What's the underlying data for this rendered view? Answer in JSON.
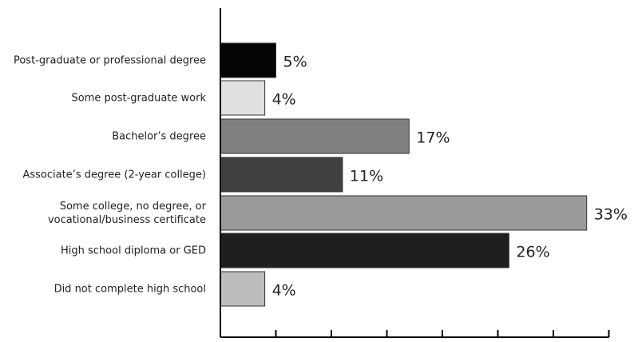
{
  "chart_data": {
    "type": "bar",
    "orientation": "horizontal",
    "title": "",
    "xlabel": "",
    "ylabel": "",
    "xlim": [
      0,
      36
    ],
    "grid": false,
    "categories": [
      [
        "Post-graduate or professional degree"
      ],
      [
        "Some post-graduate work"
      ],
      [
        "Bachelor’s degree"
      ],
      [
        "Associate’s degree (2-year college)"
      ],
      [
        "Some college, no degree, or",
        "vocational/business certificate"
      ],
      [
        "High school diploma or GED"
      ],
      [
        "Did not complete high school"
      ]
    ],
    "values": [
      5,
      4,
      17,
      11,
      33,
      26,
      4
    ],
    "value_labels": [
      "5%",
      "4%",
      "17%",
      "11%",
      "33%",
      "26%",
      "4%"
    ],
    "bar_colors": [
      "#050505",
      "#e0e0e0",
      "#808080",
      "#404040",
      "#9a9a9a",
      "#1f1f1f",
      "#bcbcbc"
    ],
    "x_ticks": [
      0,
      5,
      10,
      15,
      20,
      25,
      30,
      35
    ]
  }
}
